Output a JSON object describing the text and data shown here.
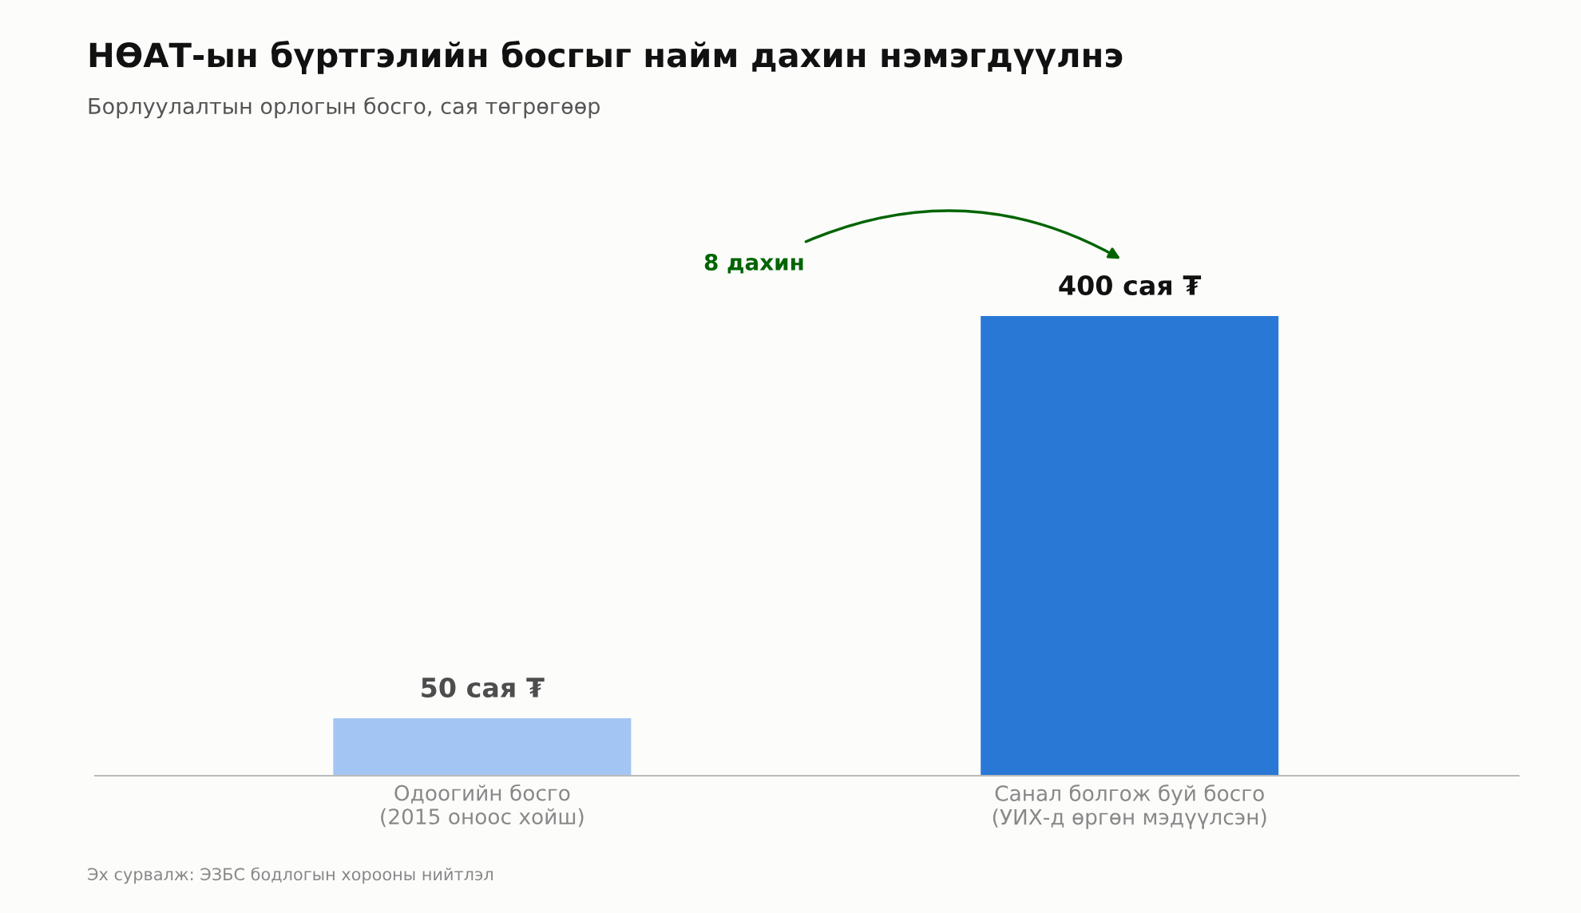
{
  "chart_data": {
    "type": "bar",
    "title": "НӨАТ-ын бүртгэлийн босгыг найм дахин нэмэгдүүлнэ",
    "subtitle": "Борлуулалтын орлогын босго, сая төгрөгөөр",
    "categories": [
      "Одоогийн босго\n(2015 оноос хойш)",
      "Санал болгож буй босго\n(УИХ-д өргөн мэдүүлсэн)"
    ],
    "values": [
      50,
      400
    ],
    "colors": [
      "#a3c5f3",
      "#2a78d6"
    ],
    "value_labels": [
      "50 сая ₮",
      "400 сая ₮"
    ],
    "annotations": [
      "8 дахин",
      "Эх сурвалж: ЭЗБС бодлогын хорооны нийтлэл"
    ],
    "grid": false,
    "legend": false
  }
}
